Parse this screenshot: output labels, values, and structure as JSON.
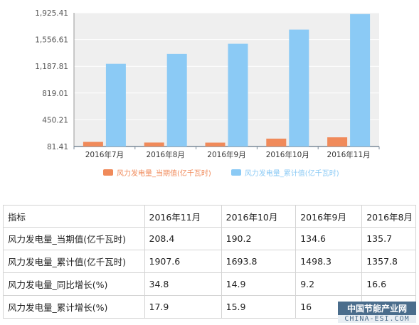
{
  "chart_data": {
    "type": "bar",
    "title": "",
    "xlabel": "",
    "ylabel": "",
    "categories": [
      "2016年7月",
      "2016年8月",
      "2016年9月",
      "2016年10月",
      "2016年11月"
    ],
    "yticks": [
      "81.41",
      "450.21",
      "819.01",
      "1,187.81",
      "1,556.61",
      "1,925.41"
    ],
    "ylim": [
      81.41,
      1925.41
    ],
    "grid": true,
    "legend_position": "bottom",
    "series": [
      {
        "name": "风力发电量_当期值(亿千瓦时)",
        "color": "#f08a5a",
        "values": [
          145,
          136,
          135,
          190,
          208
        ]
      },
      {
        "name": "风力发电量_累计值(亿千瓦时)",
        "color": "#8bcaf5",
        "values": [
          1222,
          1358,
          1498,
          1694,
          1908
        ]
      }
    ]
  },
  "table": {
    "headers": [
      "指标",
      "2016年11月",
      "2016年10月",
      "2016年9月",
      "2016年8月"
    ],
    "rows": [
      [
        "风力发电量_当期值(亿千瓦时)",
        "208.4",
        "190.2",
        "134.6",
        "135.7"
      ],
      [
        "风力发电量_累计值(亿千瓦时)",
        "1907.6",
        "1693.8",
        "1498.3",
        "1357.8"
      ],
      [
        "风力发电量_同比增长(%)",
        "34.8",
        "14.9",
        "9.2",
        "16.6"
      ],
      [
        "风力发电量_累计增长(%)",
        "17.9",
        "15.9",
        "16",
        "16.3"
      ]
    ]
  },
  "watermark": {
    "top": "中国节能产业网",
    "bottom": "CHINA-ESI.COM"
  }
}
